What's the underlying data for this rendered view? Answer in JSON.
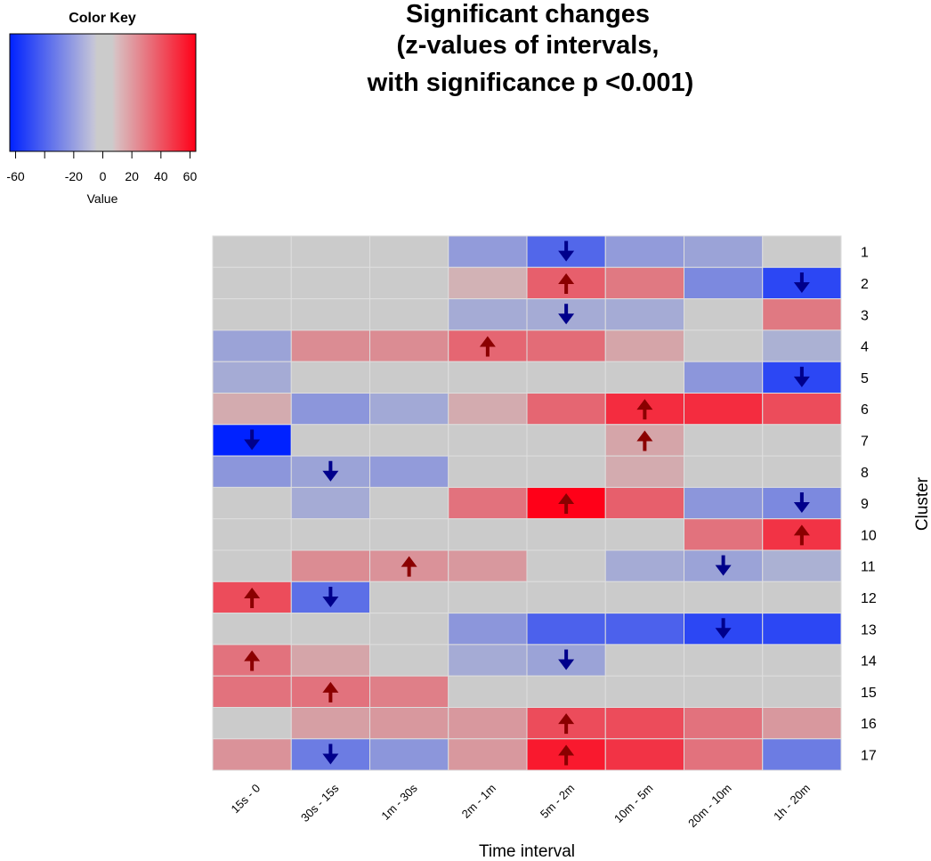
{
  "title_lines": [
    "Significant changes",
    "(z-values of intervals,",
    "with significance p <0.001)"
  ],
  "color_key": {
    "title": "Color Key",
    "label": "Value",
    "ticks": [
      -60,
      -20,
      0,
      20,
      40,
      60
    ],
    "range": [
      -64,
      64
    ],
    "low_color": "#0022ff",
    "mid_color": "#cbcbcb",
    "high_color": "#ff0018"
  },
  "chart_data": {
    "type": "heatmap",
    "xlabel": "Time interval",
    "ylabel": "Cluster",
    "columns": [
      "15s - 0",
      "30s - 15s",
      "1m - 30s",
      "2m - 1m",
      "5m - 2m",
      "10m - 5m",
      "20m - 10m",
      "1h - 20m"
    ],
    "rows": [
      "1",
      "2",
      "3",
      "4",
      "5",
      "6",
      "7",
      "8",
      "9",
      "10",
      "11",
      "12",
      "13",
      "14",
      "15",
      "16",
      "17"
    ],
    "values": [
      [
        0,
        0,
        0,
        -18,
        -38,
        -18,
        -15,
        0
      ],
      [
        0,
        0,
        0,
        8,
        34,
        26,
        -25,
        -50
      ],
      [
        0,
        0,
        0,
        -12,
        -12,
        -12,
        0,
        26
      ],
      [
        -15,
        20,
        20,
        32,
        30,
        12,
        0,
        -10
      ],
      [
        -12,
        0,
        0,
        0,
        0,
        0,
        -20,
        -50
      ],
      [
        10,
        -20,
        -13,
        10,
        32,
        50,
        50,
        40
      ],
      [
        -64,
        0,
        0,
        0,
        0,
        12,
        0,
        0
      ],
      [
        -20,
        -15,
        -18,
        0,
        0,
        10,
        0,
        0
      ],
      [
        0,
        -12,
        0,
        28,
        64,
        34,
        -20,
        -25
      ],
      [
        0,
        0,
        0,
        0,
        0,
        0,
        28,
        48
      ],
      [
        0,
        20,
        18,
        16,
        0,
        -12,
        -15,
        -10
      ],
      [
        40,
        -35,
        0,
        0,
        0,
        0,
        0,
        0
      ],
      [
        0,
        0,
        0,
        -20,
        -40,
        -40,
        -50,
        -50
      ],
      [
        28,
        12,
        0,
        -12,
        -15,
        0,
        0,
        0
      ],
      [
        28,
        28,
        24,
        0,
        0,
        0,
        0,
        0
      ],
      [
        0,
        14,
        16,
        16,
        40,
        40,
        28,
        16
      ],
      [
        18,
        -30,
        -20,
        16,
        56,
        48,
        28,
        -30
      ]
    ],
    "arrows": [
      {
        "row": 1,
        "col": 5,
        "dir": "down"
      },
      {
        "row": 2,
        "col": 5,
        "dir": "up"
      },
      {
        "row": 2,
        "col": 8,
        "dir": "down"
      },
      {
        "row": 3,
        "col": 5,
        "dir": "down"
      },
      {
        "row": 4,
        "col": 4,
        "dir": "up"
      },
      {
        "row": 5,
        "col": 8,
        "dir": "down"
      },
      {
        "row": 6,
        "col": 6,
        "dir": "up"
      },
      {
        "row": 7,
        "col": 1,
        "dir": "down"
      },
      {
        "row": 7,
        "col": 6,
        "dir": "up"
      },
      {
        "row": 8,
        "col": 2,
        "dir": "down"
      },
      {
        "row": 9,
        "col": 5,
        "dir": "up"
      },
      {
        "row": 9,
        "col": 8,
        "dir": "down"
      },
      {
        "row": 10,
        "col": 8,
        "dir": "up"
      },
      {
        "row": 11,
        "col": 3,
        "dir": "up"
      },
      {
        "row": 11,
        "col": 7,
        "dir": "down"
      },
      {
        "row": 12,
        "col": 1,
        "dir": "up"
      },
      {
        "row": 12,
        "col": 2,
        "dir": "down"
      },
      {
        "row": 13,
        "col": 7,
        "dir": "down"
      },
      {
        "row": 14,
        "col": 1,
        "dir": "up"
      },
      {
        "row": 14,
        "col": 5,
        "dir": "down"
      },
      {
        "row": 15,
        "col": 2,
        "dir": "up"
      },
      {
        "row": 16,
        "col": 5,
        "dir": "up"
      },
      {
        "row": 17,
        "col": 2,
        "dir": "down"
      },
      {
        "row": 17,
        "col": 5,
        "dir": "up"
      }
    ],
    "arrow_colors": {
      "up": "#8b0000",
      "down": "#00008b"
    }
  }
}
